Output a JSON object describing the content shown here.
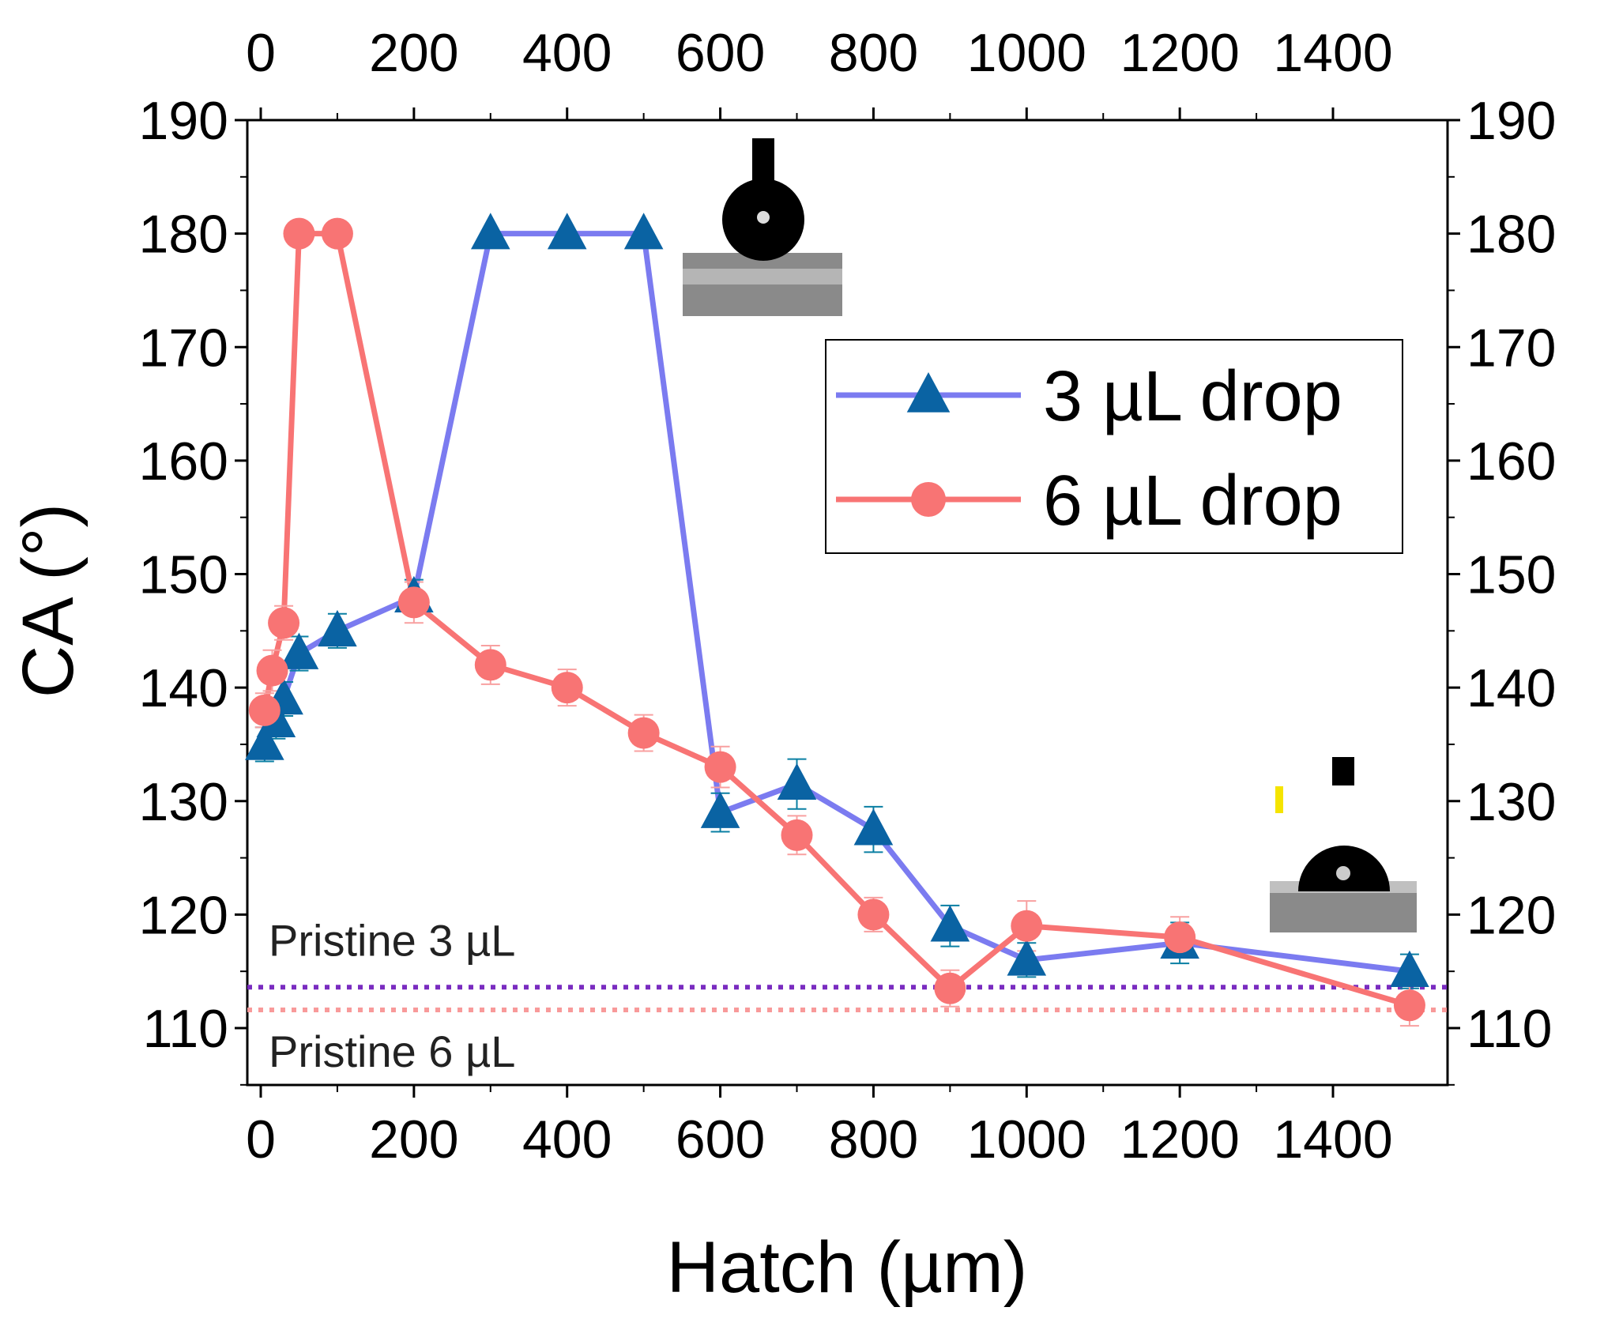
{
  "chart_data": {
    "type": "line",
    "xlabel": "Hatch (µm)",
    "ylabel": "CA (°)",
    "xlim": [
      -10,
      1560
    ],
    "ylim": [
      105,
      190
    ],
    "xticks": [
      0,
      200,
      400,
      600,
      800,
      1000,
      1200,
      1400
    ],
    "yticks": [
      110,
      120,
      130,
      140,
      150,
      160,
      170,
      180,
      190
    ],
    "grid": false,
    "legend_position": "upper-right",
    "series": [
      {
        "name": "3 µL drop",
        "color": "#7b7bf0",
        "marker_color": "#0a63a3",
        "marker": "triangle",
        "x": [
          5,
          20,
          30,
          50,
          100,
          200,
          300,
          400,
          500,
          600,
          700,
          800,
          900,
          1000,
          1200,
          1500
        ],
        "y": [
          135,
          137,
          139,
          143,
          145,
          148,
          180,
          180,
          180,
          129,
          131.5,
          127.5,
          119,
          116,
          117.5,
          115
        ],
        "err": [
          1.5,
          1.5,
          1.5,
          1.5,
          1.5,
          1.5,
          0,
          0,
          0,
          1.7,
          2.2,
          2,
          1.8,
          1.5,
          1.8,
          1.5
        ]
      },
      {
        "name": "6 µL drop",
        "color": "#f87474",
        "marker_color": "#f87474",
        "marker": "circle",
        "x": [
          5,
          15,
          30,
          50,
          100,
          200,
          300,
          400,
          500,
          600,
          700,
          800,
          900,
          1000,
          1200,
          1500
        ],
        "y": [
          138,
          141.5,
          145.7,
          180,
          180,
          147.5,
          142,
          140,
          136,
          133,
          127,
          120,
          113.5,
          119,
          118,
          112
        ],
        "err": [
          1.5,
          1.8,
          1.5,
          0,
          0,
          1.8,
          1.7,
          1.6,
          1.6,
          1.8,
          1.7,
          1.5,
          1.6,
          2.2,
          1.8,
          1.8
        ]
      }
    ],
    "reference_lines": [
      {
        "label": "Pristine 3 µL",
        "y": 113.6,
        "color": "#7a2cc0",
        "style": "dotted"
      },
      {
        "label": "Pristine 6 µL",
        "y": 111.6,
        "color": "#f89a9a",
        "style": "dotted"
      }
    ]
  }
}
